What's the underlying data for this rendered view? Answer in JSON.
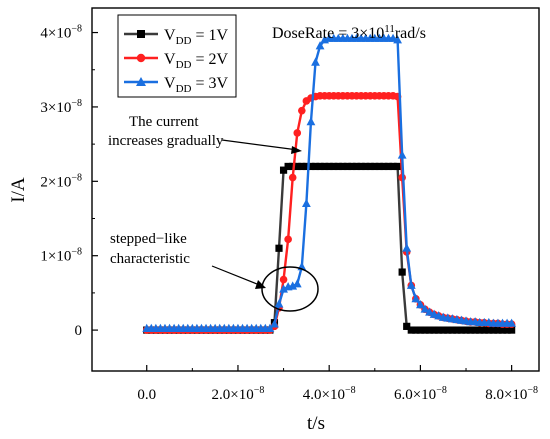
{
  "chart_data": {
    "type": "line",
    "xlabel": "t/s",
    "ylabel": "I/A",
    "xlim": [
      -1.2e-08,
      8.6e-08
    ],
    "ylim": [
      -5.5e-09,
      4.33e-08
    ],
    "x_ticks": [
      {
        "value": 0,
        "mant": "0.0",
        "exp": ""
      },
      {
        "value": 2e-08,
        "mant": "2.0×10",
        "exp": "−8"
      },
      {
        "value": 4e-08,
        "mant": "4.0×10",
        "exp": "−8"
      },
      {
        "value": 6e-08,
        "mant": "6.0×10",
        "exp": "−8"
      },
      {
        "value": 8e-08,
        "mant": "8.0×10",
        "exp": "−8"
      }
    ],
    "y_ticks": [
      {
        "value": 0,
        "mant": "0",
        "exp": ""
      },
      {
        "value": 1e-08,
        "mant": "1×10",
        "exp": "−8"
      },
      {
        "value": 2e-08,
        "mant": "2×10",
        "exp": "−8"
      },
      {
        "value": 3e-08,
        "mant": "3×10",
        "exp": "−8"
      },
      {
        "value": 4e-08,
        "mant": "4×10",
        "exp": "−8"
      }
    ],
    "dose_rate": {
      "prefix": "DoseRate = 3×10",
      "exp": "11",
      "suffix": "rad/s"
    },
    "annotations": {
      "gradual": [
        "The current",
        "increases gradually"
      ],
      "stepped": [
        "stepped−like",
        "characteristic"
      ]
    },
    "grid": false,
    "legend_position": "top-left",
    "series": [
      {
        "name": "VDD = 1V",
        "legend": {
          "base": "V",
          "sub": "DD",
          "text": " = 1V"
        },
        "color": "#3a3a3a",
        "marker": "square",
        "x": [
          0,
          1e-09,
          2e-09,
          3e-09,
          4e-09,
          5e-09,
          6e-09,
          7e-09,
          8e-09,
          9e-09,
          1e-08,
          1.1e-08,
          1.2e-08,
          1.3e-08,
          1.4e-08,
          1.5e-08,
          1.6e-08,
          1.7e-08,
          1.8e-08,
          1.9e-08,
          2e-08,
          2.1e-08,
          2.2e-08,
          2.3e-08,
          2.4e-08,
          2.5e-08,
          2.6e-08,
          2.7e-08,
          2.8e-08,
          2.9e-08,
          3e-08,
          3.1e-08,
          3.2e-08,
          3.3e-08,
          3.4e-08,
          3.5e-08,
          3.6e-08,
          3.7e-08,
          3.8e-08,
          3.9e-08,
          4e-08,
          4.1e-08,
          4.2e-08,
          4.3e-08,
          4.4e-08,
          4.5e-08,
          4.6e-08,
          4.7e-08,
          4.8e-08,
          4.9e-08,
          5e-08,
          5.1e-08,
          5.2e-08,
          5.3e-08,
          5.4e-08,
          5.5e-08,
          5.6e-08,
          5.7e-08,
          5.8e-08,
          5.9e-08,
          6e-08,
          6.1e-08,
          6.2e-08,
          6.3e-08,
          6.4e-08,
          6.5e-08,
          6.6e-08,
          6.7e-08,
          6.8e-08,
          6.9e-08,
          7e-08,
          7.1e-08,
          7.2e-08,
          7.3e-08,
          7.4e-08,
          7.5e-08,
          7.6e-08,
          7.7e-08,
          7.8e-08,
          7.9e-08,
          8e-08
        ],
        "y": [
          0,
          0,
          0,
          0,
          0,
          0,
          0,
          0,
          0,
          0,
          0,
          0,
          0,
          0,
          0,
          0,
          0,
          0,
          0,
          0,
          0,
          0,
          0,
          0,
          0,
          0,
          0,
          5e-12,
          1e-09,
          1.1e-08,
          2.15e-08,
          2.2e-08,
          2.2e-08,
          2.2e-08,
          2.2e-08,
          2.2e-08,
          2.2e-08,
          2.2e-08,
          2.2e-08,
          2.2e-08,
          2.2e-08,
          2.2e-08,
          2.2e-08,
          2.2e-08,
          2.2e-08,
          2.2e-08,
          2.2e-08,
          2.2e-08,
          2.2e-08,
          2.2e-08,
          2.2e-08,
          2.2e-08,
          2.2e-08,
          2.2e-08,
          2.2e-08,
          2.2e-08,
          7.8e-09,
          5e-10,
          0,
          0,
          0,
          0,
          0,
          0,
          0,
          0,
          0,
          0,
          0,
          0,
          0,
          0,
          0,
          0,
          0,
          0,
          0,
          0,
          0,
          0,
          0
        ]
      },
      {
        "name": "VDD = 2V",
        "legend": {
          "base": "V",
          "sub": "DD",
          "text": " = 2V"
        },
        "color": "#ff2020",
        "marker": "circle",
        "x": [
          0,
          1e-09,
          2e-09,
          3e-09,
          4e-09,
          5e-09,
          6e-09,
          7e-09,
          8e-09,
          9e-09,
          1e-08,
          1.1e-08,
          1.2e-08,
          1.3e-08,
          1.4e-08,
          1.5e-08,
          1.6e-08,
          1.7e-08,
          1.8e-08,
          1.9e-08,
          2e-08,
          2.1e-08,
          2.2e-08,
          2.3e-08,
          2.4e-08,
          2.5e-08,
          2.6e-08,
          2.7e-08,
          2.8e-08,
          2.9e-08,
          3e-08,
          3.1e-08,
          3.2e-08,
          3.3e-08,
          3.4e-08,
          3.5e-08,
          3.6e-08,
          3.7e-08,
          3.8e-08,
          3.9e-08,
          4e-08,
          4.1e-08,
          4.2e-08,
          4.3e-08,
          4.4e-08,
          4.5e-08,
          4.6e-08,
          4.7e-08,
          4.8e-08,
          4.9e-08,
          5e-08,
          5.1e-08,
          5.2e-08,
          5.3e-08,
          5.4e-08,
          5.5e-08,
          5.6e-08,
          5.7e-08,
          5.8e-08,
          5.9e-08,
          6e-08,
          6.1e-08,
          6.2e-08,
          6.3e-08,
          6.4e-08,
          6.5e-08,
          6.6e-08,
          6.7e-08,
          6.8e-08,
          6.9e-08,
          7e-08,
          7.1e-08,
          7.2e-08,
          7.3e-08,
          7.4e-08,
          7.5e-08,
          7.6e-08,
          7.7e-08,
          7.8e-08,
          7.9e-08,
          8e-08
        ],
        "y": [
          0,
          0,
          0,
          0,
          0,
          0,
          0,
          0,
          0,
          0,
          0,
          0,
          0,
          0,
          0,
          0,
          0,
          0,
          0,
          0,
          0,
          0,
          0,
          0,
          0,
          0,
          0,
          5e-12,
          5e-10,
          3e-09,
          6.8e-09,
          1.22e-08,
          2.05e-08,
          2.65e-08,
          2.95e-08,
          3.08e-08,
          3.12e-08,
          3.14e-08,
          3.15e-08,
          3.15e-08,
          3.15e-08,
          3.15e-08,
          3.15e-08,
          3.15e-08,
          3.15e-08,
          3.15e-08,
          3.15e-08,
          3.15e-08,
          3.15e-08,
          3.15e-08,
          3.15e-08,
          3.15e-08,
          3.15e-08,
          3.15e-08,
          3.15e-08,
          3.14e-08,
          2.05e-08,
          1.05e-08,
          6e-09,
          4.2e-09,
          3.4e-09,
          2.8e-09,
          2.4e-09,
          2.1e-09,
          1.9e-09,
          1.7e-09,
          1.6e-09,
          1.5e-09,
          1.4e-09,
          1.3e-09,
          1.2e-09,
          1.1e-09,
          1.1e-09,
          1e-09,
          1e-09,
          9e-10,
          9e-10,
          9e-10,
          8e-10,
          8e-10,
          8e-10
        ]
      },
      {
        "name": "VDD = 3V",
        "legend": {
          "base": "V",
          "sub": "DD",
          "text": " = 3V"
        },
        "color": "#1a6fe0",
        "marker": "triangle",
        "x": [
          0,
          1e-09,
          2e-09,
          3e-09,
          4e-09,
          5e-09,
          6e-09,
          7e-09,
          8e-09,
          9e-09,
          1e-08,
          1.1e-08,
          1.2e-08,
          1.3e-08,
          1.4e-08,
          1.5e-08,
          1.6e-08,
          1.7e-08,
          1.8e-08,
          1.9e-08,
          2e-08,
          2.1e-08,
          2.2e-08,
          2.3e-08,
          2.4e-08,
          2.5e-08,
          2.6e-08,
          2.7e-08,
          2.8e-08,
          2.9e-08,
          3e-08,
          3.1e-08,
          3.2e-08,
          3.3e-08,
          3.4e-08,
          3.5e-08,
          3.6e-08,
          3.7e-08,
          3.8e-08,
          3.9e-08,
          4e-08,
          4.1e-08,
          4.2e-08,
          4.3e-08,
          4.4e-08,
          4.5e-08,
          4.6e-08,
          4.7e-08,
          4.8e-08,
          4.9e-08,
          5e-08,
          5.1e-08,
          5.2e-08,
          5.3e-08,
          5.4e-08,
          5.5e-08,
          5.6e-08,
          5.7e-08,
          5.8e-08,
          5.9e-08,
          6e-08,
          6.1e-08,
          6.2e-08,
          6.3e-08,
          6.4e-08,
          6.5e-08,
          6.6e-08,
          6.7e-08,
          6.8e-08,
          6.9e-08,
          7e-08,
          7.1e-08,
          7.2e-08,
          7.3e-08,
          7.4e-08,
          7.5e-08,
          7.6e-08,
          7.7e-08,
          7.8e-08,
          7.9e-08,
          8e-08
        ],
        "y": [
          2e-10,
          2e-10,
          2e-10,
          2e-10,
          2e-10,
          2e-10,
          2e-10,
          2e-10,
          2e-10,
          2e-10,
          2e-10,
          2e-10,
          2e-10,
          2e-10,
          2e-10,
          2e-10,
          2e-10,
          2e-10,
          2e-10,
          2e-10,
          2e-10,
          2e-10,
          2e-10,
          2e-10,
          2e-10,
          2e-10,
          2e-10,
          2e-10,
          8e-10,
          3.5e-09,
          5.5e-09,
          5.8e-09,
          5.9e-09,
          6.2e-09,
          8.5e-09,
          1.7e-08,
          2.8e-08,
          3.6e-08,
          3.82e-08,
          3.9e-08,
          3.92e-08,
          3.92e-08,
          3.92e-08,
          3.92e-08,
          3.92e-08,
          3.92e-08,
          3.92e-08,
          3.92e-08,
          3.92e-08,
          3.92e-08,
          3.92e-08,
          3.92e-08,
          3.92e-08,
          3.92e-08,
          3.92e-08,
          3.9e-08,
          2.35e-08,
          1.1e-08,
          6e-09,
          4.2e-09,
          3.4e-09,
          2.8e-09,
          2.4e-09,
          2.1e-09,
          1.9e-09,
          1.7e-09,
          1.6e-09,
          1.5e-09,
          1.4e-09,
          1.3e-09,
          1.2e-09,
          1.1e-09,
          1.1e-09,
          1e-09,
          1e-09,
          1e-09,
          9e-10,
          9e-10,
          9e-10,
          9e-10,
          9e-10
        ]
      }
    ]
  }
}
